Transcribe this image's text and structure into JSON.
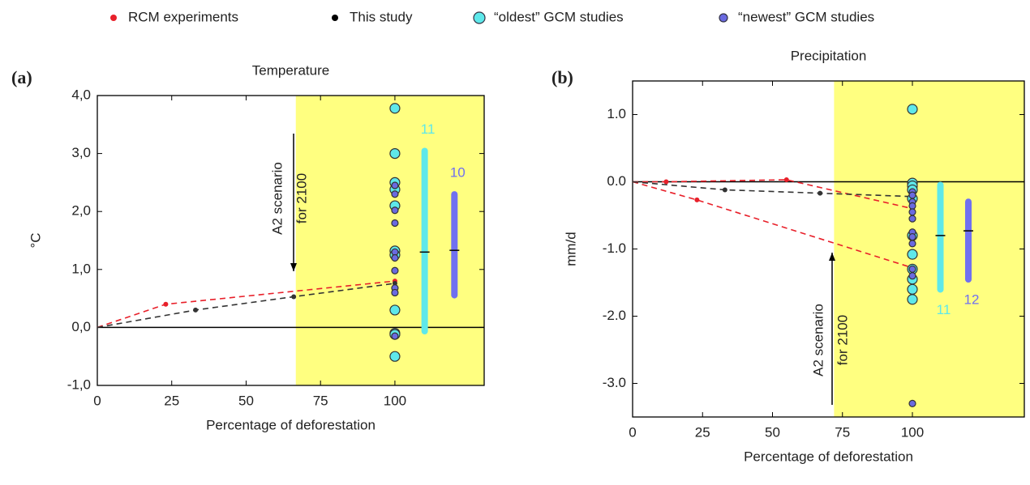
{
  "legend": [
    {
      "label": "RCM experiments",
      "color": "#e8202a"
    },
    {
      "label": "This study",
      "color": "#000000"
    },
    {
      "label": "“oldest” GCM studies",
      "color": "#5ee8ea"
    },
    {
      "label": "“newest” GCM studies",
      "color": "#6a6ae0"
    }
  ],
  "chart_data": [
    {
      "type": "scatter",
      "panel_label": "(a)",
      "title": "Temperature",
      "x_label": "Percentage of deforestation",
      "y_label": "°C",
      "xlim": [
        0,
        130
      ],
      "ylim": [
        -1,
        4
      ],
      "xticks": [
        0,
        25,
        50,
        75,
        100
      ],
      "yticks": [
        {
          "value": -1,
          "label": "-1,0"
        },
        {
          "value": 0,
          "label": "0,0"
        },
        {
          "value": 1,
          "label": "1,0"
        },
        {
          "value": 2,
          "label": "2,0"
        },
        {
          "value": 3,
          "label": "3,0"
        },
        {
          "value": 4,
          "label": "4,0"
        }
      ],
      "highlight_x": [
        66.7,
        130
      ],
      "highlight_color": "#ffff80",
      "annotation": [
        "A2 scenario",
        "for 2100"
      ],
      "series": [
        {
          "kind": "line",
          "color": "#e8202a",
          "x": [
            0,
            23,
            100
          ],
          "values": [
            0,
            0.4,
            0.8
          ]
        },
        {
          "kind": "line",
          "color": "#333333",
          "x": [
            0,
            33,
            66,
            100
          ],
          "values": [
            0,
            0.3,
            0.53,
            0.76
          ]
        },
        {
          "kind": "points",
          "marker": "large",
          "color": "#5ee8ea",
          "x": [
            100,
            100,
            100,
            100,
            100,
            100,
            100,
            100,
            100,
            100,
            100
          ],
          "values": [
            3.78,
            3.0,
            2.5,
            2.38,
            2.1,
            1.32,
            1.25,
            0.3,
            -0.1,
            -0.12,
            -0.5
          ]
        },
        {
          "kind": "points",
          "marker": "medium",
          "color": "#6a6ae0",
          "x": [
            100,
            100,
            100,
            100,
            100,
            100,
            100,
            100,
            100,
            100
          ],
          "values": [
            2.45,
            2.3,
            2.02,
            1.8,
            1.3,
            1.2,
            0.98,
            0.68,
            0.6,
            -0.15
          ]
        }
      ],
      "ranges": [
        {
          "color": "#5ee8ea",
          "x": 110,
          "low": -0.12,
          "high": 3.1,
          "mean": 1.3,
          "label": "11"
        },
        {
          "color": "#7070f0",
          "x": 120,
          "low": 0.5,
          "high": 2.35,
          "mean": 1.33,
          "label": "10"
        }
      ]
    },
    {
      "type": "scatter",
      "panel_label": "(b)",
      "title": "Precipitation",
      "x_label": "Percentage of deforestation",
      "y_label": "mm/d",
      "xlim": [
        0,
        140
      ],
      "ylim": [
        -3.5,
        1.5
      ],
      "xticks": [
        0,
        25,
        50,
        75,
        100
      ],
      "yticks": [
        {
          "value": -3,
          "label": "-3.0"
        },
        {
          "value": -2,
          "label": "-2.0"
        },
        {
          "value": -1,
          "label": "-1.0"
        },
        {
          "value": 0,
          "label": "0.0"
        },
        {
          "value": 1,
          "label": "1.0"
        }
      ],
      "highlight_x": [
        72,
        140
      ],
      "highlight_color": "#ffff80",
      "annotation": [
        "A2 scenario",
        "for 2100"
      ],
      "series": [
        {
          "kind": "line",
          "color": "#e8202a",
          "x": [
            0,
            12,
            55,
            100
          ],
          "values": [
            0,
            0.0,
            0.03,
            -0.4
          ]
        },
        {
          "kind": "line",
          "color": "#e8202a",
          "x": [
            0,
            23,
            100
          ],
          "values": [
            0,
            -0.27,
            -1.28
          ]
        },
        {
          "kind": "line",
          "color": "#333333",
          "x": [
            0,
            33,
            67,
            100
          ],
          "values": [
            0,
            -0.12,
            -0.17,
            -0.22
          ]
        },
        {
          "kind": "points",
          "marker": "large",
          "color": "#5ee8ea",
          "x": [
            100,
            100,
            100,
            100,
            100,
            100,
            100,
            100,
            100,
            100,
            100
          ],
          "values": [
            1.08,
            -0.02,
            -0.06,
            -0.25,
            -0.8,
            -1.08,
            -1.3,
            -1.45,
            -1.6,
            -1.75,
            -0.12
          ]
        },
        {
          "kind": "points",
          "marker": "medium",
          "color": "#6a6ae0",
          "x": [
            100,
            100,
            100,
            100,
            100,
            100,
            100,
            100,
            100,
            100,
            100,
            100
          ],
          "values": [
            -0.15,
            -0.2,
            -0.3,
            -0.36,
            -0.45,
            -0.55,
            -0.75,
            -0.82,
            -0.92,
            -1.3,
            -1.4,
            -3.3
          ]
        }
      ],
      "ranges": [
        {
          "color": "#5ee8ea",
          "x": 110,
          "low": -1.65,
          "high": 0.0,
          "mean": -0.8,
          "label": "11"
        },
        {
          "color": "#7070f0",
          "x": 120,
          "low": -1.5,
          "high": -0.25,
          "mean": -0.73,
          "label": "12"
        }
      ]
    }
  ]
}
